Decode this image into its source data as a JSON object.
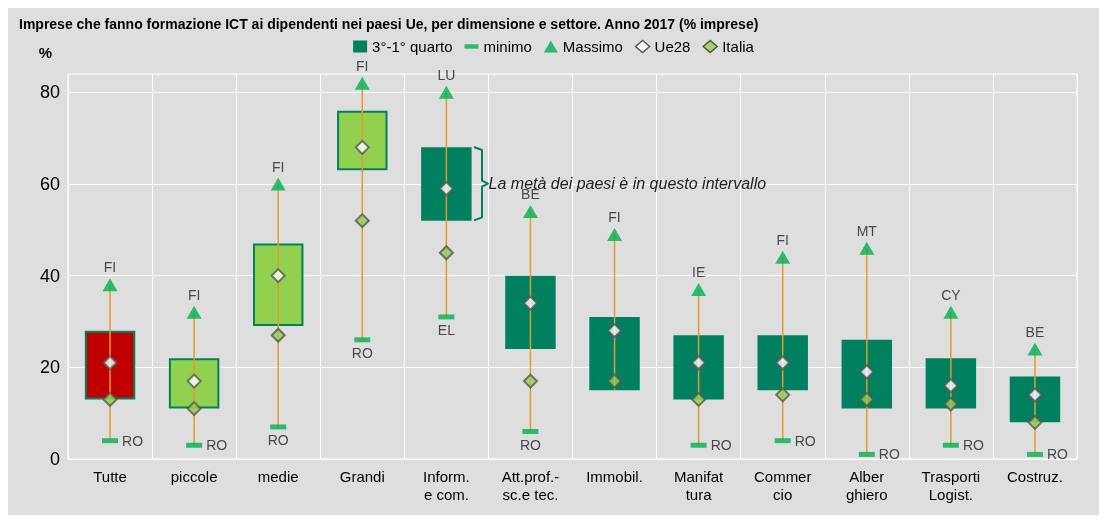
{
  "chart_data": {
    "type": "bar",
    "title": "Imprese che fanno formazione ICT ai dipendenti nei paesi Ue, per dimensione e settore. Anno 2017 (% imprese)",
    "ylabel": "%",
    "categories": [
      "Tutte",
      "piccole",
      "medie",
      "Grandi",
      "Inform.\ne com.",
      "Att.prof.-\nsc.e tec.",
      "Immobil.",
      "Manifat\ntura",
      "Commer\ncio",
      "Alber\nghiero",
      "Trasporti\nLogist.",
      "Costruz."
    ],
    "series": [
      {
        "name": "3°-1° quarto",
        "type": "bar",
        "color": "#00805f",
        "colors": [
          "#c00000",
          "#92d050",
          "#92d050",
          "#92d050",
          "#00805f",
          "#00805f",
          "#00805f",
          "#00805f",
          "#00805f",
          "#00805f",
          "#00805f",
          "#00805f"
        ],
        "base": [
          13,
          11,
          29,
          63,
          52,
          24,
          15,
          13,
          15,
          11,
          11,
          8
        ],
        "values": [
          15,
          11,
          18,
          13,
          16,
          16,
          16,
          14,
          12,
          15,
          11,
          10
        ]
      },
      {
        "name": "minimo",
        "type": "scatter",
        "marker": "square",
        "color": "#00b050",
        "values": [
          4,
          3,
          7,
          26,
          31,
          6,
          null,
          3,
          4,
          1,
          3,
          1
        ],
        "value_labels": [
          "RO",
          "RO",
          "RO",
          "RO",
          "EL",
          "RO",
          null,
          "RO",
          "RO",
          "RO",
          "RO",
          "RO"
        ]
      },
      {
        "name": "Massimo",
        "type": "scatter",
        "marker": "triangle",
        "color": "#00b050",
        "values": [
          38,
          32,
          60,
          82,
          80,
          54,
          49,
          37,
          44,
          46,
          32,
          24
        ],
        "value_labels": [
          "FI",
          "FI",
          "FI",
          "FI",
          "LU",
          "BE",
          "FI",
          "IE",
          "FI",
          "MT",
          "CY",
          "BE"
        ]
      },
      {
        "name": "Ue28",
        "type": "scatter",
        "marker": "diamond",
        "color": "#ffffff",
        "values": [
          21,
          17,
          40,
          68,
          59,
          34,
          28,
          21,
          21,
          19,
          16,
          14
        ]
      },
      {
        "name": "Italia",
        "type": "scatter",
        "marker": "diamond",
        "color": "#92d050",
        "values": [
          13,
          11,
          27,
          52,
          45,
          17,
          17,
          13,
          14,
          13,
          12,
          8
        ]
      }
    ],
    "ylim": [
      0,
      84
    ],
    "yticks": [
      0,
      20,
      40,
      60,
      80
    ],
    "grid": true,
    "legend": "top",
    "annotations": [
      {
        "text": "La metà dei paesi è in questo intervallo",
        "x": "Inform.\ne com.",
        "y": 60
      }
    ]
  }
}
